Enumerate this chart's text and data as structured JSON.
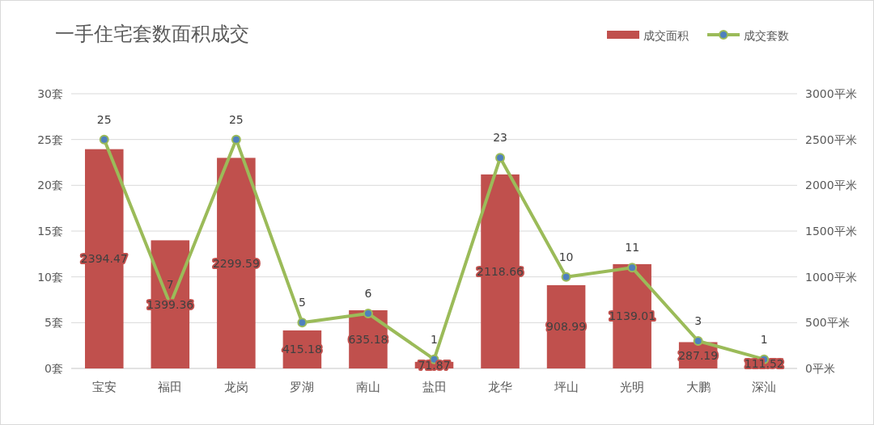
{
  "chart_data": {
    "type": "bar",
    "title": "一手住宅套数面积成交",
    "categories": [
      "宝安",
      "福田",
      "龙岗",
      "罗湖",
      "南山",
      "盐田",
      "龙华",
      "坪山",
      "光明",
      "大鹏",
      "深汕"
    ],
    "series": [
      {
        "name": "成交面积",
        "axis": "y2",
        "color": "#c0504d",
        "values": [
          2394.47,
          1399.36,
          2299.59,
          415.18,
          635.18,
          71.87,
          2118.66,
          908.99,
          1139.01,
          287.19,
          111.52
        ]
      },
      {
        "name": "成交套数",
        "type": "line",
        "axis": "y",
        "color": "#9bbb59",
        "values": [
          25,
          7,
          25,
          5,
          6,
          1,
          23,
          10,
          11,
          3,
          1
        ]
      }
    ],
    "ylim": [
      0,
      30
    ],
    "yticks": [
      {
        "value": 0,
        "label": "0套"
      },
      {
        "value": 5,
        "label": "5套"
      },
      {
        "value": 10,
        "label": "10套"
      },
      {
        "value": 15,
        "label": "15套"
      },
      {
        "value": 20,
        "label": "20套"
      },
      {
        "value": 25,
        "label": "25套"
      },
      {
        "value": 30,
        "label": "30套"
      }
    ],
    "y2lim": [
      0,
      3000
    ],
    "y2ticks": [
      {
        "value": 0,
        "label": "0平米"
      },
      {
        "value": 500,
        "label": "500平米"
      },
      {
        "value": 1000,
        "label": "1000平米"
      },
      {
        "value": 1500,
        "label": "1500平米"
      },
      {
        "value": 2000,
        "label": "2000平米"
      },
      {
        "value": 2500,
        "label": "2500平米"
      },
      {
        "value": 3000,
        "label": "3000平米"
      }
    ],
    "grid": "y",
    "legend": "top right",
    "marker": "circle",
    "data_labels": true
  }
}
